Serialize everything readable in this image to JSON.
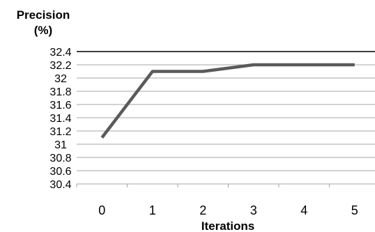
{
  "chart_data": {
    "type": "line",
    "ylabel_line1": "Precision",
    "ylabel_line2": "(%)",
    "xlabel": "Iterations",
    "x": [
      0,
      1,
      2,
      3,
      4,
      5
    ],
    "x_tick_labels": [
      "0",
      "1",
      "2",
      "3",
      "4",
      "5"
    ],
    "series": [
      {
        "values": [
          31.1,
          32.1,
          32.1,
          32.2,
          32.2,
          32.2
        ]
      }
    ],
    "ylim": [
      30.4,
      32.4
    ],
    "y_ticks": [
      30.4,
      30.6,
      30.8,
      31,
      31.2,
      31.4,
      31.6,
      31.8,
      32,
      32.2,
      32.4
    ],
    "y_tick_labels": [
      "30.4",
      "30.6",
      "30.8",
      "31",
      "31.2",
      "31.4",
      "31.6",
      "31.8",
      "32",
      "32.2",
      "32.4"
    ],
    "grid": true,
    "legend": "none",
    "series_color": "#5a5a5a"
  }
}
